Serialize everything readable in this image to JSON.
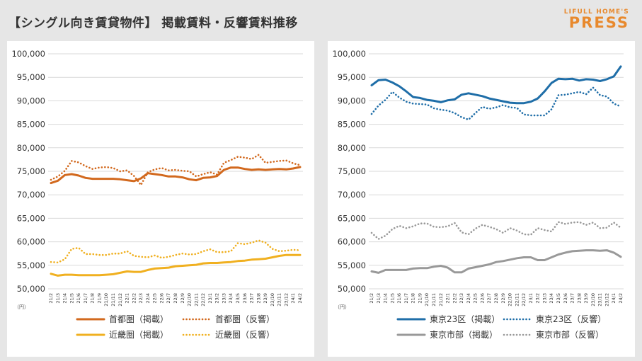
{
  "header": {
    "title": "【シングル向き賃貸物件】 掲載賃料・反響賃料推移",
    "logo_top": "LIFULL HOME'S",
    "logo_main": "PRESS"
  },
  "colors": {
    "shuto": "#d2691e",
    "kinki": "#f0b020",
    "tokyo23": "#1f6ea8",
    "tokyo_city": "#999999",
    "grid": "#d9d9d9",
    "axis_text": "#333333"
  },
  "chart_data": [
    {
      "type": "line",
      "ylim": [
        50000,
        100000
      ],
      "ytick_step": 5000,
      "yticks": [
        "50,000",
        "55,000",
        "60,000",
        "65,000",
        "70,000",
        "75,000",
        "80,000",
        "85,000",
        "90,000",
        "95,000",
        "100,000"
      ],
      "yunit": "（円）",
      "categories": [
        "21/2",
        "21/3",
        "21/4",
        "21/5",
        "21/6",
        "21/7",
        "21/8",
        "21/9",
        "21/10",
        "21/11",
        "21/12",
        "22/1",
        "22/2",
        "22/3",
        "22/4",
        "22/5",
        "22/6",
        "22/7",
        "22/8",
        "22/9",
        "22/10",
        "22/11",
        "22/12",
        "23/1",
        "23/2",
        "23/3",
        "23/4",
        "23/5",
        "23/6",
        "23/7",
        "23/8",
        "23/9",
        "23/10",
        "23/11",
        "23/12",
        "24/1",
        "24/2"
      ],
      "series": [
        {
          "name": "首都圏（掲載）",
          "style": "solid",
          "color": "#d2691e",
          "values": [
            72500,
            73000,
            74200,
            74400,
            74100,
            73600,
            73400,
            73400,
            73400,
            73400,
            73300,
            73100,
            72900,
            73500,
            74600,
            74400,
            74200,
            73900,
            73900,
            73700,
            73300,
            73100,
            73600,
            73700,
            74000,
            75300,
            75800,
            75800,
            75500,
            75300,
            75400,
            75300,
            75400,
            75500,
            75400,
            75600,
            75900
          ]
        },
        {
          "name": "首都圏（反響）",
          "style": "dotted",
          "color": "#d2691e",
          "values": [
            73200,
            73900,
            75100,
            77200,
            76900,
            76100,
            75500,
            75800,
            75900,
            75700,
            75000,
            75200,
            74000,
            72100,
            74800,
            75400,
            75700,
            75200,
            75300,
            75100,
            75000,
            73900,
            74400,
            74800,
            74300,
            76800,
            77400,
            78100,
            77900,
            77600,
            78500,
            76800,
            77000,
            77200,
            77300,
            76700,
            76300
          ]
        },
        {
          "name": "近畿圏（掲載）",
          "style": "solid",
          "color": "#f0b020",
          "values": [
            53200,
            52800,
            53000,
            53000,
            52900,
            52900,
            52900,
            52900,
            53000,
            53100,
            53400,
            53700,
            53600,
            53600,
            54000,
            54300,
            54400,
            54500,
            54800,
            54900,
            55000,
            55100,
            55400,
            55500,
            55500,
            55600,
            55700,
            55900,
            56000,
            56200,
            56300,
            56400,
            56700,
            57000,
            57200,
            57200,
            57200
          ]
        },
        {
          "name": "近畿圏（反響）",
          "style": "dotted",
          "color": "#f0b020",
          "values": [
            55700,
            55600,
            56300,
            58500,
            58700,
            57400,
            57400,
            57200,
            57200,
            57500,
            57500,
            58000,
            57000,
            56800,
            56700,
            57100,
            56600,
            56800,
            57200,
            57500,
            57300,
            57400,
            58000,
            58400,
            57800,
            57800,
            58000,
            59700,
            59500,
            59800,
            60300,
            59800,
            58500,
            58000,
            58100,
            58300,
            58200
          ]
        }
      ]
    },
    {
      "type": "line",
      "ylim": [
        50000,
        100000
      ],
      "ytick_step": 5000,
      "yticks": [
        "50,000",
        "55,000",
        "60,000",
        "65,000",
        "70,000",
        "75,000",
        "80,000",
        "85,000",
        "90,000",
        "95,000",
        "100,000"
      ],
      "yunit": "（円）",
      "categories": [
        "21/2",
        "21/3",
        "21/4",
        "21/5",
        "21/6",
        "21/7",
        "21/8",
        "21/9",
        "21/10",
        "21/11",
        "21/12",
        "22/1",
        "22/2",
        "22/3",
        "22/4",
        "22/5",
        "22/6",
        "22/7",
        "22/8",
        "22/9",
        "22/10",
        "22/11",
        "22/12",
        "23/1",
        "23/2",
        "23/3",
        "23/4",
        "23/5",
        "23/6",
        "23/7",
        "23/8",
        "23/9",
        "23/10",
        "23/11",
        "23/12",
        "24/1",
        "24/2"
      ],
      "series": [
        {
          "name": "東京23区（掲載）",
          "style": "solid",
          "color": "#1f6ea8",
          "values": [
            93300,
            94400,
            94500,
            93900,
            93100,
            92000,
            90800,
            90600,
            90200,
            90000,
            89700,
            90100,
            90300,
            91300,
            91600,
            91300,
            91000,
            90500,
            90200,
            89900,
            89600,
            89500,
            89500,
            89800,
            90500,
            92000,
            93800,
            94700,
            94600,
            94700,
            94300,
            94600,
            94500,
            94200,
            94600,
            95200,
            97300
          ]
        },
        {
          "name": "東京23区（反響）",
          "style": "dotted",
          "color": "#1f6ea8",
          "values": [
            87200,
            89000,
            90200,
            91900,
            90700,
            89800,
            89400,
            89300,
            89200,
            88400,
            88100,
            87900,
            87400,
            86500,
            86000,
            87400,
            88700,
            88300,
            88600,
            89100,
            88600,
            88500,
            87100,
            86900,
            86900,
            86900,
            88200,
            91200,
            91300,
            91600,
            91900,
            91400,
            92800,
            91200,
            90900,
            89400,
            88800
          ]
        },
        {
          "name": "東京市部（掲載）",
          "style": "solid",
          "color": "#999999",
          "values": [
            53700,
            53400,
            54000,
            54000,
            54000,
            54000,
            54300,
            54400,
            54400,
            54700,
            54900,
            54500,
            53500,
            53500,
            54300,
            54600,
            54900,
            55200,
            55700,
            55900,
            56200,
            56500,
            56700,
            56700,
            56100,
            56100,
            56700,
            57300,
            57700,
            58000,
            58100,
            58200,
            58200,
            58100,
            58200,
            57700,
            56800
          ]
        },
        {
          "name": "東京市部（反響）",
          "style": "dotted",
          "color": "#999999",
          "values": [
            61900,
            60600,
            61300,
            62700,
            63400,
            62900,
            63300,
            63900,
            63900,
            63200,
            63100,
            63300,
            64000,
            62000,
            61600,
            62800,
            63600,
            63200,
            62700,
            61900,
            62900,
            62400,
            61600,
            61500,
            62900,
            62500,
            62200,
            64200,
            63800,
            64100,
            64200,
            63600,
            64100,
            62900,
            63000,
            64100,
            63000
          ]
        }
      ]
    }
  ],
  "legend_left": [
    {
      "label": "首都圏（掲載）",
      "style": "solid",
      "color": "#d2691e"
    },
    {
      "label": "首都圏（反響）",
      "style": "dotted",
      "color": "#d2691e"
    },
    {
      "label": "近畿圏（掲載）",
      "style": "solid",
      "color": "#f0b020"
    },
    {
      "label": "近畿圏（反響）",
      "style": "dotted",
      "color": "#f0b020"
    }
  ],
  "legend_right": [
    {
      "label": "東京23区（掲載）",
      "style": "solid",
      "color": "#1f6ea8"
    },
    {
      "label": "東京23区（反響）",
      "style": "dotted",
      "color": "#1f6ea8"
    },
    {
      "label": "東京市部（掲載）",
      "style": "solid",
      "color": "#999999"
    },
    {
      "label": "東京市部（反響）",
      "style": "dotted",
      "color": "#999999"
    }
  ]
}
